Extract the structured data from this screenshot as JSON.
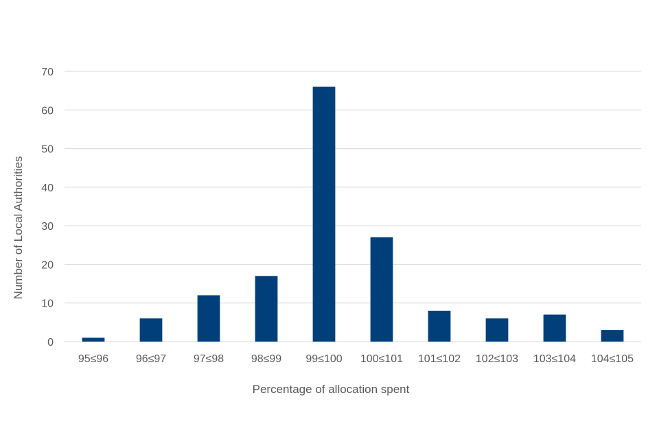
{
  "chart_data": {
    "type": "bar",
    "title": "",
    "xlabel": "Percentage of allocation spent",
    "ylabel": "Number of Local Authorities",
    "categories": [
      "95≤96",
      "96≤97",
      "97≤98",
      "98≤99",
      "99≤100",
      "100≤101",
      "101≤102",
      "102≤103",
      "103≤104",
      "104≤105"
    ],
    "values": [
      1,
      6,
      12,
      17,
      66,
      27,
      8,
      6,
      7,
      3
    ],
    "ylim": [
      0,
      70
    ],
    "yticks": [
      0,
      10,
      20,
      30,
      40,
      50,
      60,
      70
    ],
    "grid": true,
    "legend": "none",
    "colors": {
      "bar": "#003f7a",
      "grid": "#d9d9d9",
      "text": "#595959"
    }
  }
}
